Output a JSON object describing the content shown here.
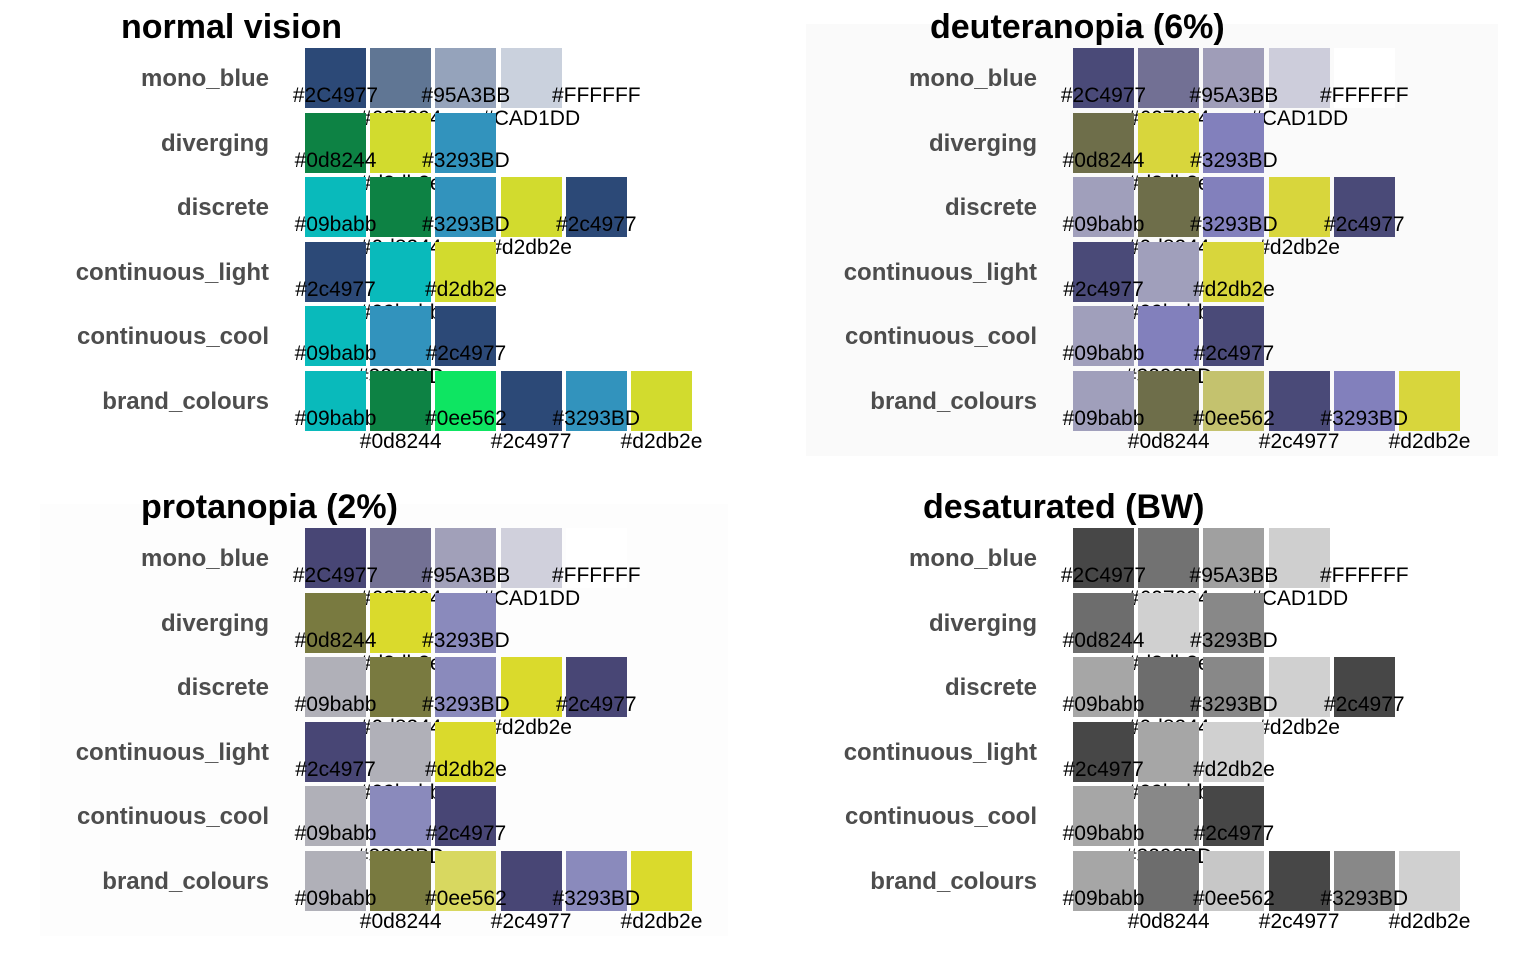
{
  "chart_data": {
    "type": "heatmap",
    "palettes": [
      {
        "name": "mono_blue",
        "colors": [
          "#2C4977",
          "#607694",
          "#95A3BB",
          "#CAD1DD",
          "#FFFFFF"
        ]
      },
      {
        "name": "diverging",
        "colors": [
          "#0d8244",
          "#d2db2e",
          "#3293BD"
        ]
      },
      {
        "name": "discrete",
        "colors": [
          "#09babb",
          "#0d8244",
          "#3293BD",
          "#d2db2e",
          "#2c4977"
        ]
      },
      {
        "name": "continuous_light",
        "colors": [
          "#2c4977",
          "#09babb",
          "#d2db2e"
        ]
      },
      {
        "name": "continuous_cool",
        "colors": [
          "#09babb",
          "#3293BD",
          "#2c4977"
        ]
      },
      {
        "name": "brand_colours",
        "colors": [
          "#09babb",
          "#0d8244",
          "#0ee562",
          "#2c4977",
          "#3293BD",
          "#d2db2e"
        ]
      }
    ],
    "panels": [
      {
        "title": "normal vision",
        "background": "#ffffff",
        "map": {}
      },
      {
        "title": "deuteranopia (6%)",
        "background": "#fafafa",
        "map": {
          "#2c4977": "#4a4a78",
          "#607694": "#727094",
          "#95a3bb": "#9f9db8",
          "#cad1dd": "#cdcddb",
          "#ffffff": "#ffffff",
          "#0d8244": "#6e6e4a",
          "#d2db2e": "#d8d63c",
          "#3293bd": "#8280bc",
          "#09babb": "#a09fbb",
          "#0ee562": "#c4c26e"
        }
      },
      {
        "title": "protanopia (2%)",
        "background": "#fdfdfd",
        "map": {
          "#2c4977": "#484675",
          "#607694": "#737194",
          "#95a3bb": "#a1a0b9",
          "#cad1dd": "#d0d0dc",
          "#ffffff": "#ffffff",
          "#0d8244": "#797a40",
          "#d2db2e": "#dada2c",
          "#3293bd": "#8a8abc",
          "#09babb": "#b0b0b8",
          "#0ee562": "#d8d860"
        }
      },
      {
        "title": "desaturated (BW)",
        "background": "#ffffff",
        "map": {
          "#2c4977": "#474747",
          "#607694": "#727272",
          "#95a3bb": "#a0a0a0",
          "#cad1dd": "#cfcfcf",
          "#ffffff": "#ffffff",
          "#0d8244": "#6d6d6d",
          "#d2db2e": "#d0d0d0",
          "#3293bd": "#888888",
          "#09babb": "#a6a6a6",
          "#0ee562": "#c7c7c7"
        }
      }
    ]
  }
}
